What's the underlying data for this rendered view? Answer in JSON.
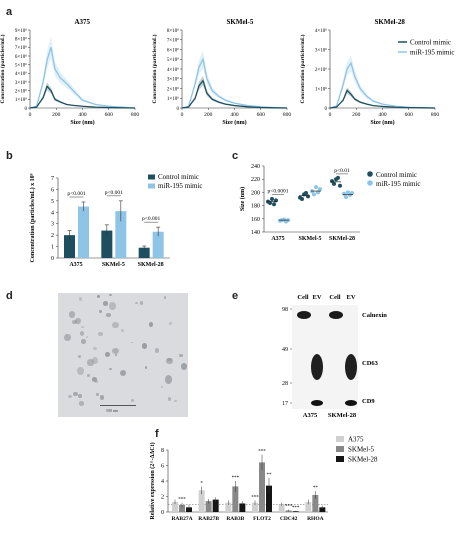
{
  "panel_labels": {
    "a": "a",
    "b": "b",
    "c": "c",
    "d": "d",
    "e": "e",
    "f": "f"
  },
  "colors": {
    "control": "#1d4f60",
    "mir": "#8ec5e6",
    "a375": "#d0d0d0",
    "skmel5": "#888888",
    "skmel28": "#151515"
  },
  "chart_data": [
    {
      "id": "a",
      "type": "line",
      "panels": [
        {
          "title": "A375",
          "ylabel": "Concentration (particles/mL)",
          "xlabel": "Size (nm)",
          "yticks": [
            "0",
            "1×10⁶",
            "2×10⁶",
            "3×10⁶",
            "4×10⁶",
            "5×10⁶",
            "6×10⁶",
            "7×10⁶",
            "8×10⁶",
            "9×10⁶"
          ],
          "xticks": [
            "0",
            "200",
            "400",
            "600",
            "800"
          ],
          "xlim": [
            0,
            800
          ],
          "ylim": [
            0,
            9000000
          ],
          "series": [
            {
              "name": "Control mimic",
              "x": [
                0,
                50,
                100,
                130,
                160,
                190,
                230,
                280,
                330,
                400,
                500,
                600,
                700,
                800
              ],
              "y": [
                0,
                100000,
                1200000,
                2500000,
                2000000,
                1000000,
                700000,
                400000,
                300000,
                200000,
                100000,
                50000,
                20000,
                0
              ]
            },
            {
              "name": "miR-195 mimic",
              "x": [
                0,
                50,
                100,
                130,
                160,
                190,
                230,
                280,
                330,
                400,
                500,
                600,
                700,
                800
              ],
              "y": [
                0,
                200000,
                3000000,
                5500000,
                7000000,
                4500000,
                3500000,
                2800000,
                2000000,
                900000,
                400000,
                200000,
                100000,
                0
              ]
            }
          ]
        },
        {
          "title": "SKMel-5",
          "ylabel": "Concentration (particles/mL)",
          "xlabel": "Size (nm)",
          "yticks": [
            "0",
            "1×10⁶",
            "2×10⁶",
            "3×10⁶",
            "4×10⁶",
            "5×10⁶",
            "6×10⁶",
            "7×10⁶",
            "8×10⁶"
          ],
          "xticks": [
            "0",
            "200",
            "400",
            "600",
            "800"
          ],
          "xlim": [
            0,
            800
          ],
          "ylim": [
            0,
            8000000
          ],
          "series": [
            {
              "name": "Control mimic",
              "x": [
                0,
                50,
                100,
                130,
                160,
                190,
                230,
                280,
                330,
                400,
                500,
                600,
                700,
                800
              ],
              "y": [
                0,
                100000,
                1000000,
                2300000,
                2800000,
                1500000,
                900000,
                600000,
                400000,
                250000,
                120000,
                50000,
                20000,
                0
              ]
            },
            {
              "name": "miR-195 mimic",
              "x": [
                0,
                50,
                100,
                130,
                160,
                190,
                230,
                280,
                330,
                400,
                500,
                600,
                700,
                800
              ],
              "y": [
                0,
                150000,
                2500000,
                4200000,
                5000000,
                3000000,
                1800000,
                1200000,
                800000,
                500000,
                250000,
                120000,
                50000,
                0
              ]
            }
          ]
        },
        {
          "title": "SKMel-28",
          "ylabel": "Concentration (particles/mL)",
          "xlabel": "Size (nm)",
          "yticks": [
            "0",
            "1×10⁶",
            "2×10⁶",
            "3×10⁶",
            "4×10⁶"
          ],
          "xticks": [
            "0",
            "200",
            "400",
            "600",
            "800"
          ],
          "xlim": [
            0,
            800
          ],
          "ylim": [
            0,
            4000000
          ],
          "series": [
            {
              "name": "Control mimic",
              "x": [
                0,
                50,
                100,
                130,
                160,
                190,
                230,
                280,
                330,
                400,
                500,
                600,
                700,
                800
              ],
              "y": [
                0,
                50000,
                400000,
                900000,
                700000,
                450000,
                300000,
                200000,
                120000,
                80000,
                40000,
                20000,
                10000,
                0
              ]
            },
            {
              "name": "miR-195 mimic",
              "x": [
                0,
                50,
                100,
                130,
                160,
                190,
                230,
                280,
                330,
                400,
                500,
                600,
                700,
                800
              ],
              "y": [
                0,
                100000,
                1200000,
                2000000,
                2300000,
                1600000,
                1000000,
                600000,
                350000,
                200000,
                90000,
                40000,
                15000,
                0
              ]
            }
          ]
        }
      ],
      "legend": [
        "Control mimic",
        "miR-195 mimic"
      ]
    },
    {
      "id": "b",
      "type": "bar",
      "categories": [
        "A375",
        "SKMel-5",
        "SKMel-28"
      ],
      "series": [
        {
          "name": "Control mimic",
          "values": [
            2.0,
            2.4,
            0.9
          ],
          "errors": [
            0.4,
            0.5,
            0.15
          ]
        },
        {
          "name": "miR-195 mimic",
          "values": [
            4.5,
            4.1,
            2.3
          ],
          "errors": [
            0.4,
            0.9,
            0.4
          ]
        }
      ],
      "ylabel": "Concentration (particles/mL) x 10⁹",
      "ylim": [
        0,
        7
      ],
      "yticks": [
        "0",
        "1",
        "2",
        "3",
        "4",
        "5",
        "6",
        "7"
      ],
      "annotations": [
        "p<0.001",
        "p<0.001",
        "p<0.001"
      ]
    },
    {
      "id": "c",
      "type": "scatter",
      "categories": [
        "A375",
        "SKMel-5",
        "SKMel-28"
      ],
      "series": [
        {
          "name": "Control mimic",
          "points": [
            [
              186,
              184,
              190,
              182,
              188
            ],
            [
              192,
              190,
              197,
              199,
              194
            ],
            [
              217,
              213,
              220,
              222,
              210
            ]
          ],
          "means": [
            186,
            195,
            216
          ]
        },
        {
          "name": "miR-195 mimic",
          "points": [
            [
              157,
              158,
              159,
              156,
              158
            ],
            [
              202,
              197,
              208,
              200,
              205
            ],
            [
              198,
              193,
              200,
              196,
              199
            ]
          ],
          "means": [
            158,
            202,
            197
          ]
        }
      ],
      "ylabel": "Size (nm)",
      "ylim": [
        140,
        240
      ],
      "yticks": [
        "140",
        "160",
        "180",
        "200",
        "220",
        "240"
      ],
      "annotations": [
        "p<0.0001",
        "p<0.01"
      ]
    },
    {
      "id": "f",
      "type": "bar",
      "categories": [
        "RAB27A",
        "RAB27B",
        "RAB3B",
        "FLOT2",
        "CDC42",
        "RHOA"
      ],
      "series": [
        {
          "name": "A375",
          "values": [
            1.3,
            2.8,
            1.2,
            1.2,
            1.0,
            1.3
          ],
          "errors": [
            0.3,
            0.5,
            0.3,
            0.3,
            0.2,
            0.3
          ]
        },
        {
          "name": "SKMel-5",
          "values": [
            0.9,
            1.4,
            3.3,
            6.4,
            0.2,
            2.2
          ],
          "errors": [
            0.3,
            0.3,
            0.7,
            1.0,
            0.1,
            0.5
          ]
        },
        {
          "name": "SKMel-28",
          "values": [
            0.6,
            1.6,
            1.1,
            3.4,
            0.1,
            0.6
          ],
          "errors": [
            0.3,
            0.3,
            0.3,
            1.0,
            0.05,
            0.2
          ]
        }
      ],
      "ylabel": "Relative expression (2^-ΔΔCt)",
      "ylim": [
        0,
        8
      ],
      "yticks": [
        "0",
        "2",
        "4",
        "6",
        "8"
      ],
      "significance": [
        "***",
        "*",
        "***",
        "***",
        "***",
        "**",
        "***",
        "***",
        "**"
      ],
      "legend": [
        "A375",
        "SKMel-5",
        "SKMel-28"
      ]
    }
  ],
  "panel_e": {
    "lanes": [
      "Cell",
      "EV",
      "Cell",
      "EV"
    ],
    "markers": [
      "98",
      "49",
      "28",
      "17"
    ],
    "proteins": [
      "Calnexin",
      "CD63",
      "CD9"
    ],
    "cell_lines": [
      "A375",
      "SKMel-28"
    ]
  },
  "panel_d": {
    "scale_bar": "500 nm"
  }
}
